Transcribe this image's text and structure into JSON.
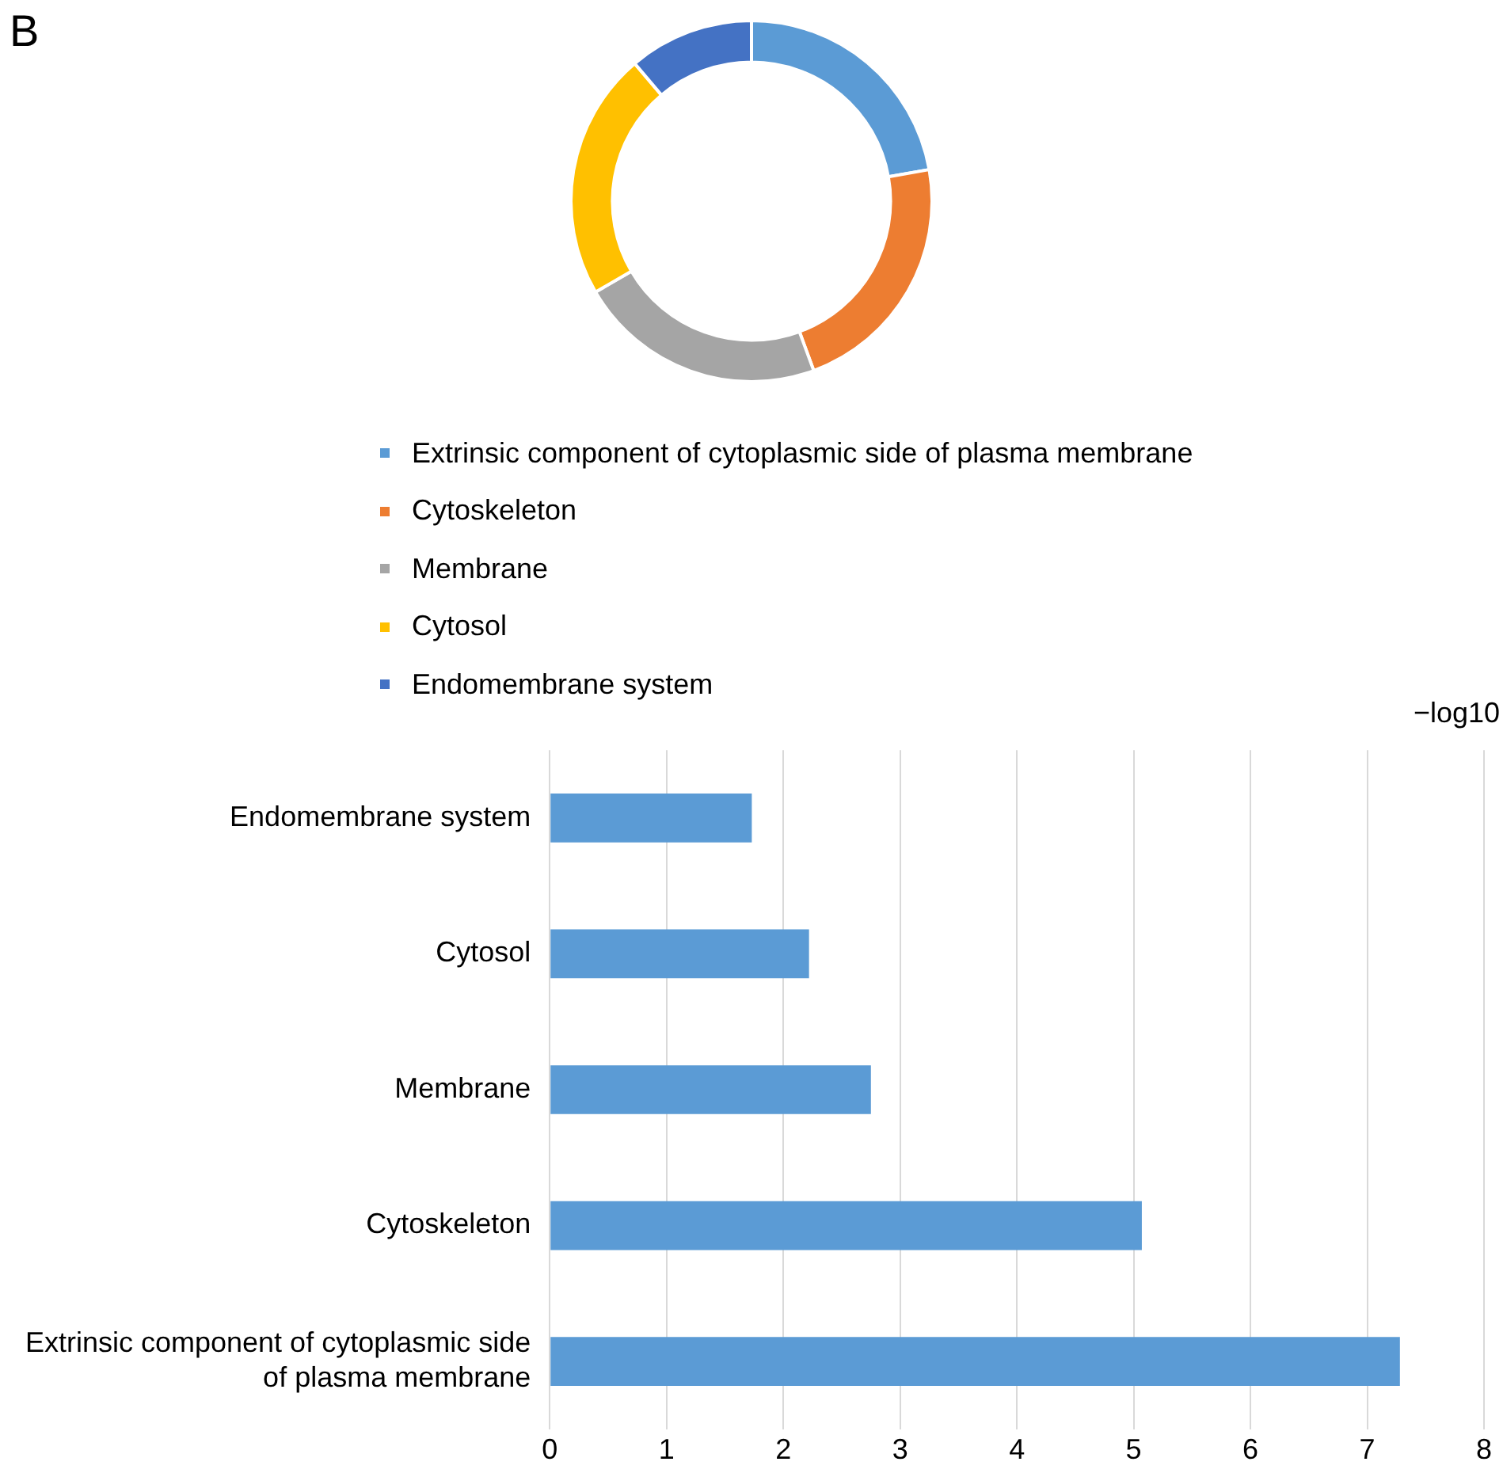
{
  "chart_data": [
    {
      "type": "donut",
      "annotations": [
        "B"
      ],
      "categories": [
        "Extrinsic component of cytoplasmic side of plasma membrane",
        "Cytoskeleton",
        "Membrane",
        "Cytosol",
        "Endomembrane system"
      ],
      "values": [
        22.2,
        22.2,
        22.2,
        22.2,
        11.2
      ],
      "colors": [
        "#5b9bd5",
        "#ed7d31",
        "#a5a5a5",
        "#ffc000",
        "#4472c4"
      ],
      "legend": "bottom"
    },
    {
      "type": "bar",
      "orientation": "horizontal",
      "xlabel": "−log10",
      "categories": [
        "Endomembrane system",
        "Cytosol",
        "Membrane",
        "Cytoskeleton",
        "Extrinsic component of cytoplasmic side of plasma membrane"
      ],
      "values": [
        1.73,
        2.22,
        2.75,
        5.07,
        7.28
      ],
      "color": "#5b9bd5",
      "xlim": [
        0,
        8
      ],
      "xticks": [
        0,
        1,
        2,
        3,
        4,
        5,
        6,
        7,
        8
      ],
      "grid": "x"
    }
  ]
}
